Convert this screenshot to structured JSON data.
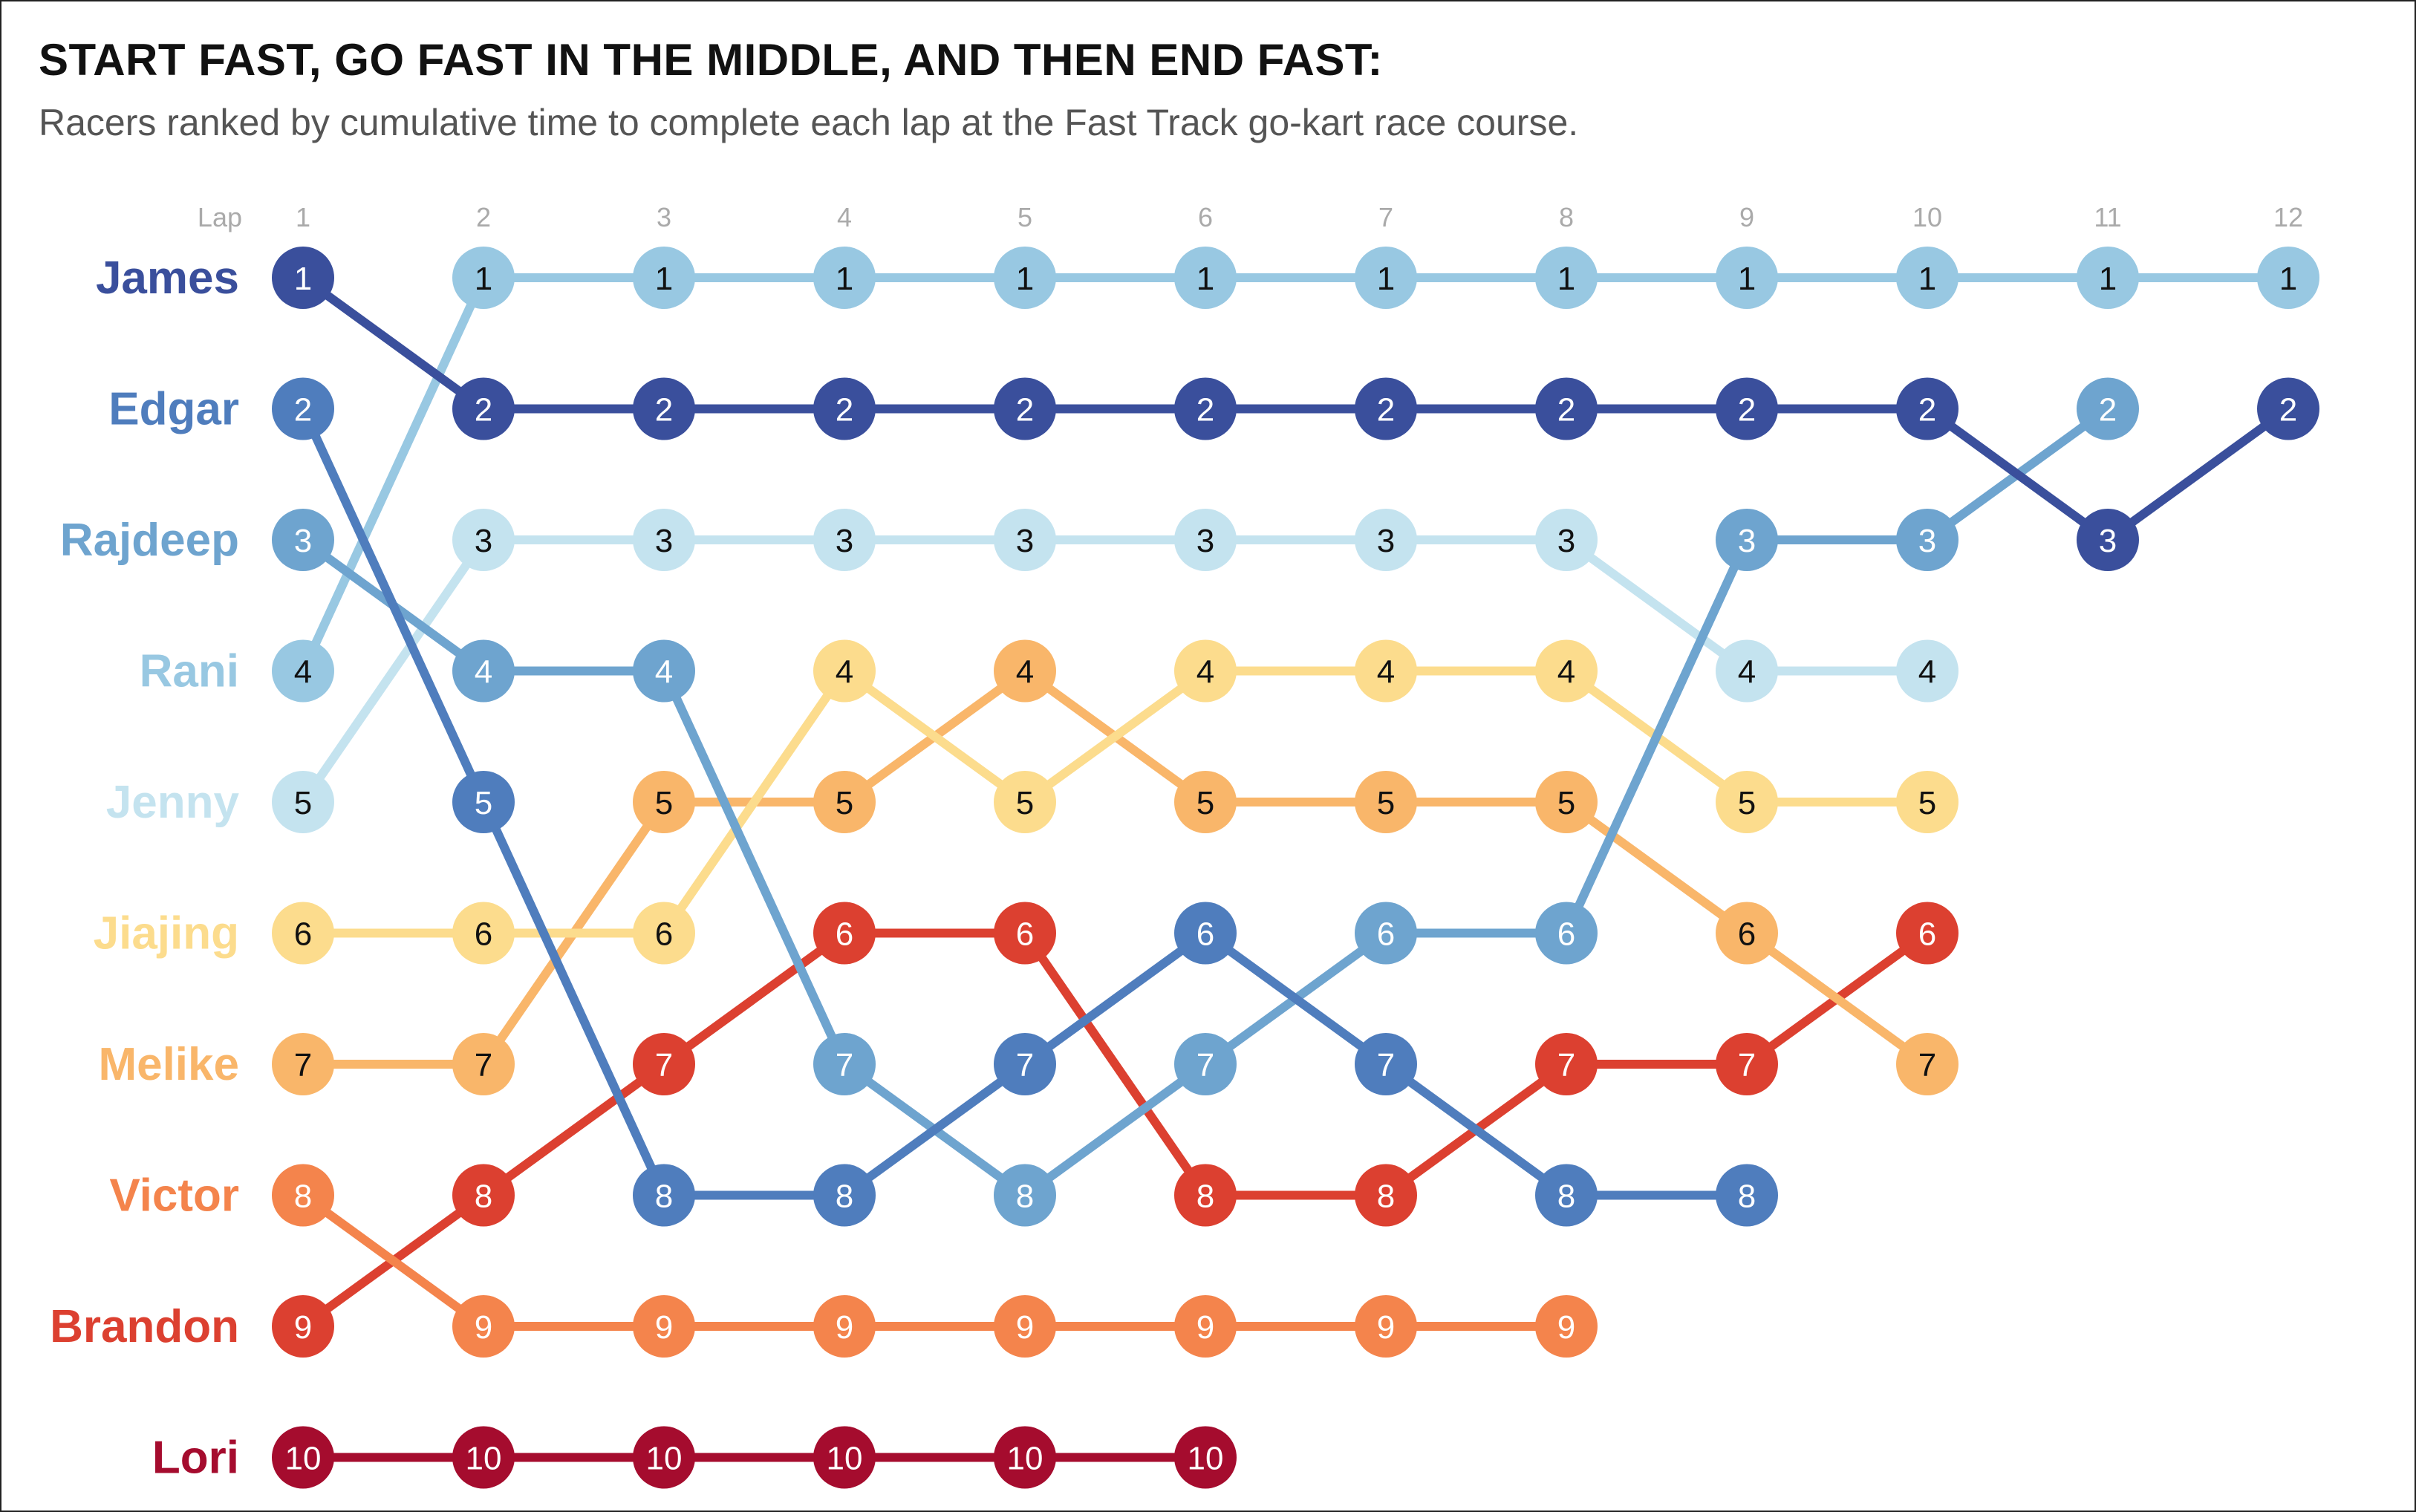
{
  "header": {
    "title": "START FAST, GO FAST IN THE MIDDLE, AND THEN END FAST:",
    "subtitle": "Racers ranked by cumulative time to complete each lap at the Fast Track go-kart race course."
  },
  "chart_data": {
    "type": "line",
    "subtype": "bump",
    "x_label": "Lap",
    "laps": [
      1,
      2,
      3,
      4,
      5,
      6,
      7,
      8,
      9,
      10,
      11,
      12
    ],
    "y_axis": "rank",
    "y_order": "1 at top",
    "series": [
      {
        "name": "James",
        "color": "#3a4f9c",
        "ranks": [
          1,
          2,
          2,
          2,
          2,
          2,
          2,
          2,
          2,
          2,
          3,
          2
        ]
      },
      {
        "name": "Edgar",
        "color": "#4f7dbd",
        "ranks": [
          2,
          5,
          8,
          8,
          7,
          6,
          7,
          8,
          8
        ]
      },
      {
        "name": "Rajdeep",
        "color": "#6ea4cf",
        "ranks": [
          3,
          4,
          4,
          7,
          8,
          7,
          6,
          6,
          3,
          3,
          2
        ]
      },
      {
        "name": "Rani",
        "color": "#98c8e2",
        "ranks": [
          4,
          1,
          1,
          1,
          1,
          1,
          1,
          1,
          1,
          1,
          1,
          1
        ]
      },
      {
        "name": "Jenny",
        "color": "#c4e3ef",
        "ranks": [
          5,
          3,
          3,
          3,
          3,
          3,
          3,
          3,
          4,
          4
        ]
      },
      {
        "name": "Jiajing",
        "color": "#fcdc8d",
        "ranks": [
          6,
          6,
          6,
          4,
          5,
          4,
          4,
          4,
          5,
          5
        ]
      },
      {
        "name": "Melike",
        "color": "#f9b66a",
        "ranks": [
          7,
          7,
          5,
          5,
          4,
          5,
          5,
          5,
          6,
          7
        ]
      },
      {
        "name": "Victor",
        "color": "#f4844c",
        "ranks": [
          8,
          9,
          9,
          9,
          9,
          9,
          9,
          9
        ]
      },
      {
        "name": "Brandon",
        "color": "#dc4030",
        "ranks": [
          9,
          8,
          7,
          6,
          6,
          8,
          8,
          7,
          7,
          6
        ]
      },
      {
        "name": "Lori",
        "color": "#a50c2e",
        "ranks": [
          10,
          10,
          10,
          10,
          10,
          10
        ]
      }
    ],
    "dark_text_series": [
      "Rani",
      "Jenny",
      "Jiajing",
      "Melike"
    ],
    "grid": false,
    "legend": "none"
  }
}
